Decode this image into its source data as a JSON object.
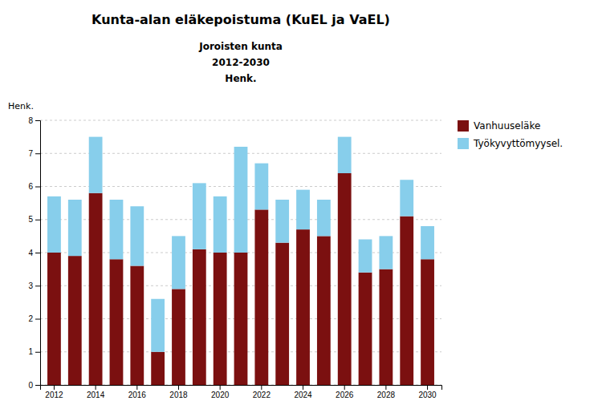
{
  "chart_data": {
    "type": "bar",
    "stacked": true,
    "title": "Kunta-alan eläkepoistuma (KuEL ja VaEL)",
    "subtitle": [
      "Joroisten kunta",
      "2012-2030",
      "Henk."
    ],
    "ylabel": "Henk.",
    "categories": [
      "2012",
      null,
      "2014",
      null,
      "2016",
      null,
      "2018",
      null,
      "2020",
      null,
      "2022",
      null,
      "2024",
      null,
      "2026",
      null,
      "2028",
      null,
      "2030"
    ],
    "series": [
      {
        "name": "Vanhuuseläke",
        "color": "#7B1010",
        "values": [
          4.0,
          3.9,
          5.8,
          3.8,
          3.6,
          1.0,
          2.9,
          4.1,
          4.0,
          4.0,
          5.3,
          4.3,
          4.7,
          4.5,
          6.4,
          3.4,
          3.5,
          5.1,
          3.8
        ]
      },
      {
        "name": "Työkyvyttömyysel.",
        "color": "#87CEEB",
        "values": [
          1.7,
          1.7,
          1.7,
          1.8,
          1.8,
          1.6,
          1.6,
          2.0,
          1.7,
          3.2,
          1.4,
          1.3,
          1.2,
          1.1,
          1.1,
          1.0,
          1.0,
          1.1,
          1.0
        ]
      }
    ],
    "ylim": [
      0,
      8
    ],
    "yticks": [
      0,
      1,
      2,
      3,
      4,
      5,
      6,
      7,
      8
    ],
    "grid": true,
    "legend": "right"
  }
}
